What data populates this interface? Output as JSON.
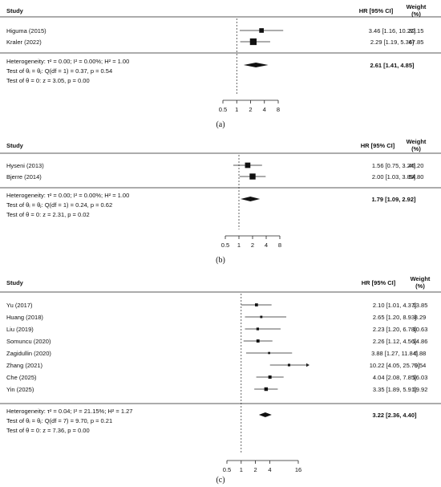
{
  "chart_data": [
    {
      "type": "forest",
      "caption": "(a)",
      "headers": {
        "study": "Study",
        "hr": "HR [95% CI]",
        "weight": "Weight (%)"
      },
      "studies": [
        {
          "name": "Higuma (2015)",
          "hr": 3.46,
          "lo": 1.16,
          "hi": 10.27,
          "ci_text": "3.46 [1.16, 10.27]",
          "weight_text": "32.15",
          "weight": 32.15
        },
        {
          "name": "Kraler (2022)",
          "hr": 2.29,
          "lo": 1.19,
          "hi": 5.34,
          "ci_text": "2.29 [1.19, 5.34]",
          "weight_text": "67.85",
          "weight": 67.85
        }
      ],
      "pooled": {
        "hr": 2.61,
        "lo": 1.41,
        "hi": 4.85,
        "ci_text": "2.61 [1.41, 4.85]"
      },
      "stats": [
        "Heterogeneity: τ² = 0.00; I² = 0.00%; H² = 1.00",
        "Test of θᵢ = θⱼ: Q(df = 1) = 0.37, p = 0.54",
        "Test of θ = 0: z = 3.05, p = 0.00"
      ],
      "x_ticks": [
        "0.5",
        "1",
        "2",
        "4",
        "8"
      ],
      "x_scale": "log",
      "xlim": [
        0.5,
        8
      ]
    },
    {
      "type": "forest",
      "caption": "(b)",
      "headers": {
        "study": "Study",
        "hr": "HR [95% CI]",
        "weight": "Weight (%)"
      },
      "studies": [
        {
          "name": "Hyseni (2013)",
          "hr": 1.56,
          "lo": 0.75,
          "hi": 3.24,
          "ci_text": "1.56 [0.75, 3.24]",
          "weight_text": "45.20",
          "weight": 45.2
        },
        {
          "name": "Bjerre (2014)",
          "hr": 2.0,
          "lo": 1.03,
          "hi": 3.89,
          "ci_text": "2.00 [1.03, 3.89]",
          "weight_text": "54.80",
          "weight": 54.8
        }
      ],
      "pooled": {
        "hr": 1.79,
        "lo": 1.09,
        "hi": 2.92,
        "ci_text": "1.79 [1.09, 2.92]"
      },
      "stats": [
        "Heterogeneity: τ² = 0.00; I² = 0.00%; H² = 1.00",
        "Test of θᵢ = θⱼ: Q(df = 1) = 0.24, p = 0.62",
        "Test of θ = 0: z = 2.31, p = 0.02"
      ],
      "x_ticks": [
        "0.5",
        "1",
        "2",
        "4",
        "8"
      ],
      "x_scale": "log",
      "xlim": [
        0.5,
        8
      ]
    },
    {
      "type": "forest",
      "caption": "(c)",
      "headers": {
        "study": "Study",
        "hr": "HR [95% CI]",
        "weight": "Weight (%)"
      },
      "studies": [
        {
          "name": "Yu (2017)",
          "hr": 2.1,
          "lo": 1.01,
          "hi": 4.37,
          "ci_text": "2.10 [1.01, 4.37]",
          "weight_text": "13.85",
          "weight": 13.85
        },
        {
          "name": "Huang (2018)",
          "hr": 2.65,
          "lo": 1.2,
          "hi": 8.93,
          "ci_text": "2.65 [1.20, 8.93]",
          "weight_text": "8.29",
          "weight": 8.29
        },
        {
          "name": "Liu  (2019)",
          "hr": 2.23,
          "lo": 1.2,
          "hi": 6.78,
          "ci_text": "2.23 [1.20, 6.78]",
          "weight_text": "10.63",
          "weight": 10.63
        },
        {
          "name": "Somuncu (2020)",
          "hr": 2.26,
          "lo": 1.12,
          "hi": 4.56,
          "ci_text": "2.26 [1.12, 4.56]",
          "weight_text": "14.86",
          "weight": 14.86
        },
        {
          "name": "Zagidullin (2020)",
          "hr": 3.88,
          "lo": 1.27,
          "hi": 11.84,
          "ci_text": "3.88 [1.27, 11.84]",
          "weight_text": "6.88",
          "weight": 6.88
        },
        {
          "name": "Zhang (2021)",
          "hr": 10.22,
          "lo": 4.05,
          "hi": 25.7,
          "ci_text": "10.22 [4.05, 25.70]",
          "weight_text": "9.54",
          "weight": 9.54
        },
        {
          "name": "Che (2025)",
          "hr": 4.04,
          "lo": 2.08,
          "hi": 7.85,
          "ci_text": "4.04 [2.08, 7.85]",
          "weight_text": "16.03",
          "weight": 16.03
        },
        {
          "name": "Yin (2025)",
          "hr": 3.35,
          "lo": 1.89,
          "hi": 5.91,
          "ci_text": "3.35 [1.89, 5.91]",
          "weight_text": "19.92",
          "weight": 19.92
        }
      ],
      "pooled": {
        "hr": 3.22,
        "lo": 2.36,
        "hi": 4.4,
        "ci_text": "3.22 [2.36, 4.40]"
      },
      "stats": [
        "Heterogeneity: τ² = 0.04; I² = 21.15%; H² = 1.27",
        "Test of θᵢ = θⱼ: Q(df = 7) = 9.70, p = 0.21",
        "Test of θ = 0: z = 7.36, p = 0.00"
      ],
      "x_ticks": [
        "0.5",
        "1",
        "2",
        "4",
        "16"
      ],
      "x_scale": "log",
      "xlim": [
        0.5,
        16
      ]
    }
  ]
}
